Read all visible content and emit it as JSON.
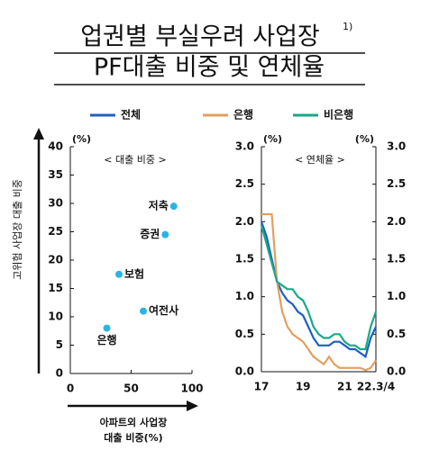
{
  "title": {
    "line1": "업권별 부실우려 사업장",
    "note": "1)",
    "line2": "PF대출 비중 및 연체율"
  },
  "chart_data": [
    {
      "type": "scatter",
      "subtitle": "< 대출 비중 >",
      "y_unit": "(%)",
      "ylabel": "고위험 사업장 대출 비중",
      "xlabel": [
        "아파트외 사업장",
        "대출 비중(%)"
      ],
      "labels": [
        "저축",
        "증권",
        "보험",
        "여전사",
        "은행"
      ],
      "x": [
        85,
        78,
        40,
        60,
        30
      ],
      "y": [
        29.5,
        24.5,
        17.5,
        11,
        8
      ],
      "color": "#2ab4e6",
      "xlim": [
        0,
        100
      ],
      "xticks": [
        0,
        50,
        100
      ],
      "ylim": [
        0,
        40
      ],
      "yticks": [
        0,
        5,
        10,
        15,
        20,
        25,
        30,
        35,
        40
      ]
    },
    {
      "type": "line",
      "subtitle": "< 연체율 >",
      "y_unit": "(%)",
      "y2_unit": "(%)",
      "categories": [
        "17",
        null,
        null,
        null,
        null,
        null,
        null,
        null,
        "19",
        null,
        null,
        null,
        null,
        null,
        null,
        null,
        "21",
        null,
        null,
        null,
        null,
        null,
        "22.3/4"
      ],
      "series": [
        {
          "name": "전체",
          "color": "#1f5fbf",
          "values": [
            2.0,
            1.8,
            1.5,
            1.2,
            1.05,
            0.95,
            0.9,
            0.8,
            0.75,
            0.6,
            0.45,
            0.35,
            0.35,
            0.35,
            0.4,
            0.4,
            0.35,
            0.3,
            0.3,
            0.25,
            0.2,
            0.45,
            0.6
          ]
        },
        {
          "name": "은행",
          "color": "#e0a060",
          "values": [
            2.1,
            2.1,
            2.1,
            1.2,
            0.8,
            0.6,
            0.5,
            0.45,
            0.4,
            0.3,
            0.2,
            0.15,
            0.1,
            0.2,
            0.1,
            0.05,
            0.05,
            0.05,
            0.05,
            0.05,
            0.02,
            0.05,
            0.15
          ]
        },
        {
          "name": "비은행",
          "color": "#1aa888",
          "values": [
            1.95,
            1.7,
            1.45,
            1.2,
            1.15,
            1.1,
            1.1,
            1.0,
            0.95,
            0.8,
            0.6,
            0.5,
            0.45,
            0.45,
            0.5,
            0.5,
            0.4,
            0.35,
            0.35,
            0.3,
            0.3,
            0.6,
            0.8
          ]
        }
      ],
      "legend": "top",
      "ylim": [
        0,
        3
      ],
      "yticks": [
        {
          "value": 0,
          "label": "0.0"
        },
        {
          "value": 0.5,
          "label": "0.5"
        },
        {
          "value": 1,
          "label": "1.0"
        },
        {
          "value": 1.5,
          "label": "1.5"
        },
        {
          "value": 2,
          "label": "2.0"
        },
        {
          "value": 2.5,
          "label": "2.5"
        },
        {
          "value": 3,
          "label": "3.0"
        }
      ],
      "y2lim": [
        0,
        3
      ],
      "y2ticks": [
        {
          "value": 0,
          "label": "0.0"
        },
        {
          "value": 0.5,
          "label": "0.5"
        },
        {
          "value": 1,
          "label": "1.0"
        },
        {
          "value": 1.5,
          "label": "1.5"
        },
        {
          "value": 2,
          "label": "2.0"
        },
        {
          "value": 2.5,
          "label": "2.5"
        },
        {
          "value": 3,
          "label": "3.0"
        }
      ]
    }
  ]
}
